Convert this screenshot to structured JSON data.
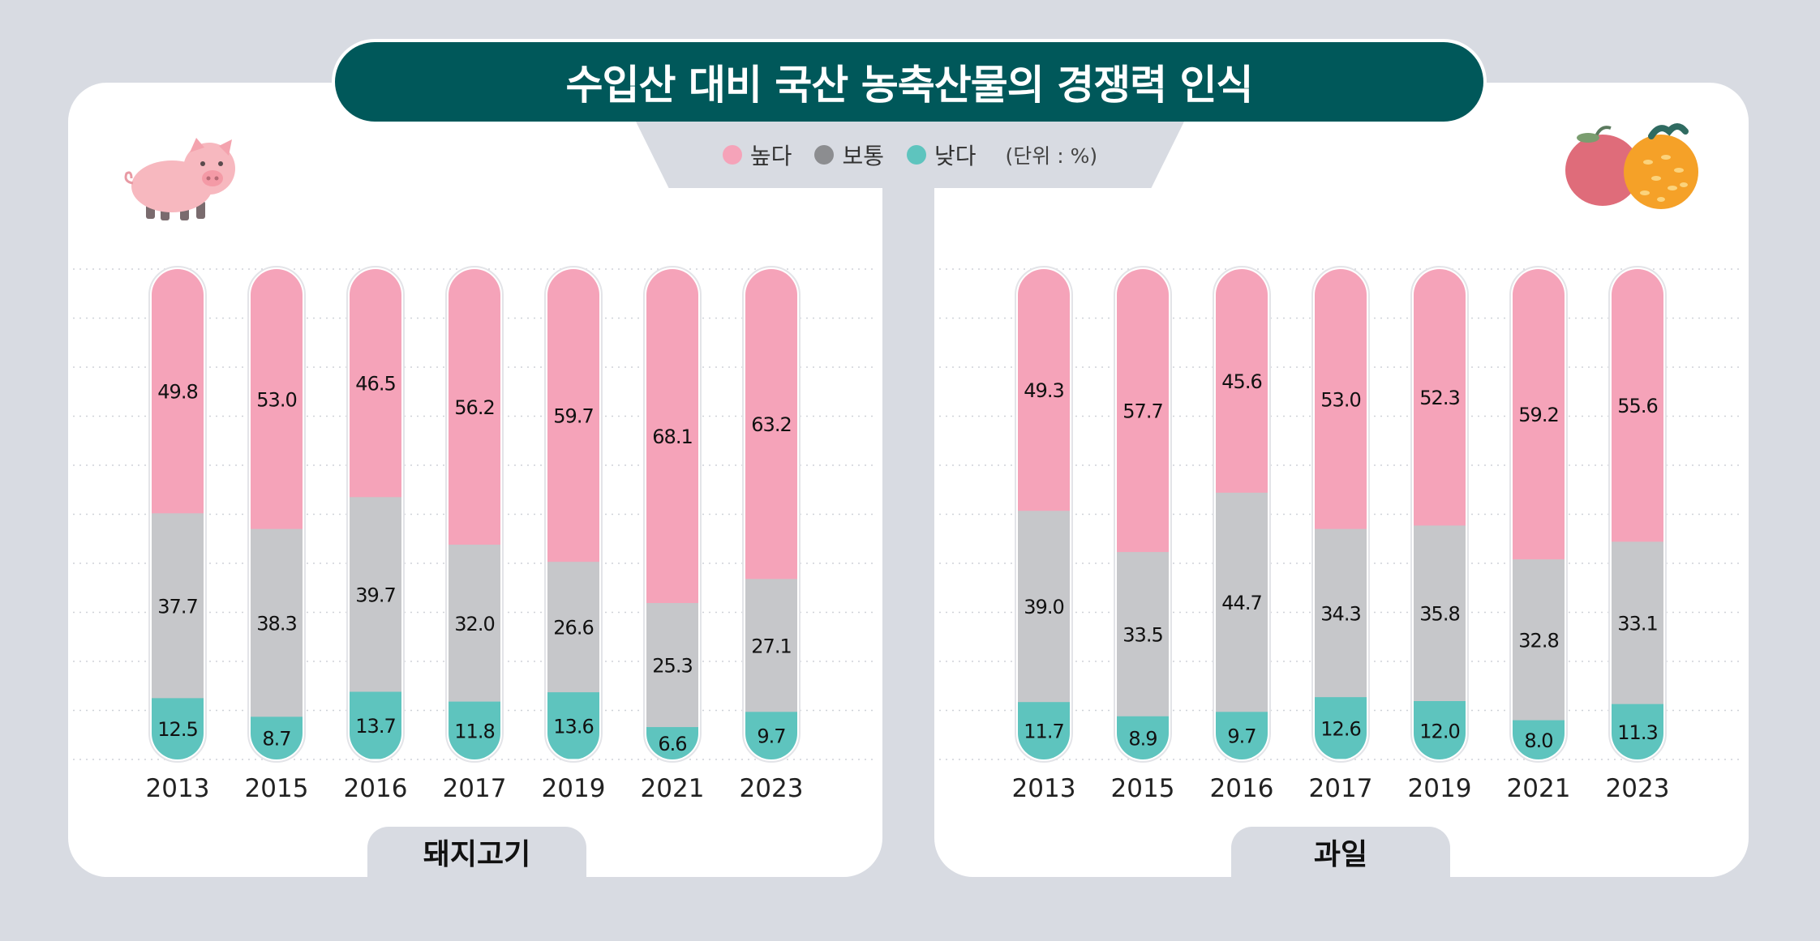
{
  "title": "수입산 대비 국산 농축산물의 경쟁력 인식",
  "legend": {
    "items": [
      {
        "label": "높다",
        "color": "#f5a3b9"
      },
      {
        "label": "보통",
        "color": "#8c8d90"
      },
      {
        "label": "낮다",
        "color": "#5ec4be"
      }
    ],
    "unit": "(단위 : %)"
  },
  "chart_data": [
    {
      "type": "bar",
      "stacked": true,
      "title": "돼지고기",
      "categories": [
        "2013",
        "2015",
        "2016",
        "2017",
        "2019",
        "2021",
        "2023"
      ],
      "series": [
        {
          "name": "높다",
          "values": [
            49.8,
            53.0,
            46.5,
            56.2,
            59.7,
            68.1,
            63.2
          ]
        },
        {
          "name": "보통",
          "values": [
            37.7,
            38.3,
            39.7,
            32.0,
            26.6,
            25.3,
            27.1
          ]
        },
        {
          "name": "낮다",
          "values": [
            12.5,
            8.7,
            13.7,
            11.8,
            13.6,
            6.6,
            9.7
          ]
        }
      ],
      "ylim": [
        0,
        100
      ]
    },
    {
      "type": "bar",
      "stacked": true,
      "title": "과일",
      "categories": [
        "2013",
        "2015",
        "2016",
        "2017",
        "2019",
        "2021",
        "2023"
      ],
      "series": [
        {
          "name": "높다",
          "values": [
            49.3,
            57.7,
            45.6,
            53.0,
            52.3,
            59.2,
            55.6
          ]
        },
        {
          "name": "보통",
          "values": [
            39.0,
            33.5,
            44.7,
            34.3,
            35.8,
            32.8,
            33.1
          ]
        },
        {
          "name": "낮다",
          "values": [
            11.7,
            8.9,
            9.7,
            12.6,
            12.0,
            8.0,
            11.3
          ]
        }
      ],
      "ylim": [
        0,
        100
      ]
    }
  ],
  "colors": {
    "high": "#f5a3b9",
    "medium": "#c6c7ca",
    "low": "#5ec4be",
    "title_bg": "#00585a"
  }
}
